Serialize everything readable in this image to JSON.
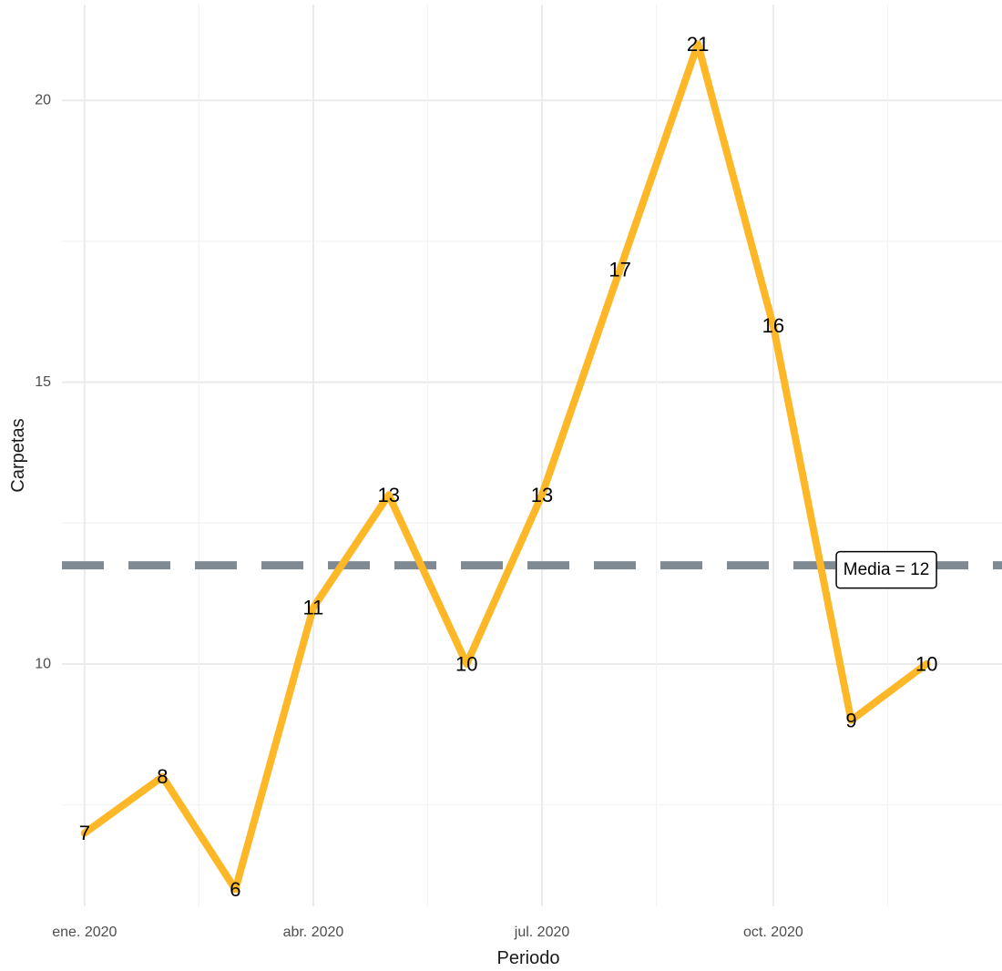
{
  "chart_data": {
    "type": "line",
    "x": [
      "2020-01",
      "2020-02",
      "2020-03",
      "2020-04",
      "2020-05",
      "2020-06",
      "2020-07",
      "2020-08",
      "2020-09",
      "2020-10",
      "2020-11",
      "2020-12"
    ],
    "values": [
      7,
      8,
      6,
      11,
      13,
      10,
      13,
      17,
      21,
      16,
      9,
      10
    ],
    "data_labels": [
      "7",
      "8",
      "6",
      "11",
      "13",
      "10",
      "13",
      "17",
      "21",
      "16",
      "9",
      "10"
    ],
    "x_tick_labels": [
      "ene. 2020",
      "abr. 2020",
      "jul. 2020",
      "oct. 2020"
    ],
    "x_tick_positions": [
      "2020-01",
      "2020-04",
      "2020-07",
      "2020-10"
    ],
    "y_ticks": [
      10,
      15,
      20
    ],
    "y_tick_labels": [
      "10",
      "15",
      "20"
    ],
    "xlabel": "Periodo",
    "ylabel": "Carpetas",
    "ylim": [
      5.7,
      21.7
    ],
    "xlim": [
      "2019-12-23",
      "2020-12-31"
    ],
    "mean": 11.75,
    "mean_label": "Media = 12",
    "line_color": "#FDB727",
    "mean_line_color": "#808A93",
    "grid": true
  }
}
